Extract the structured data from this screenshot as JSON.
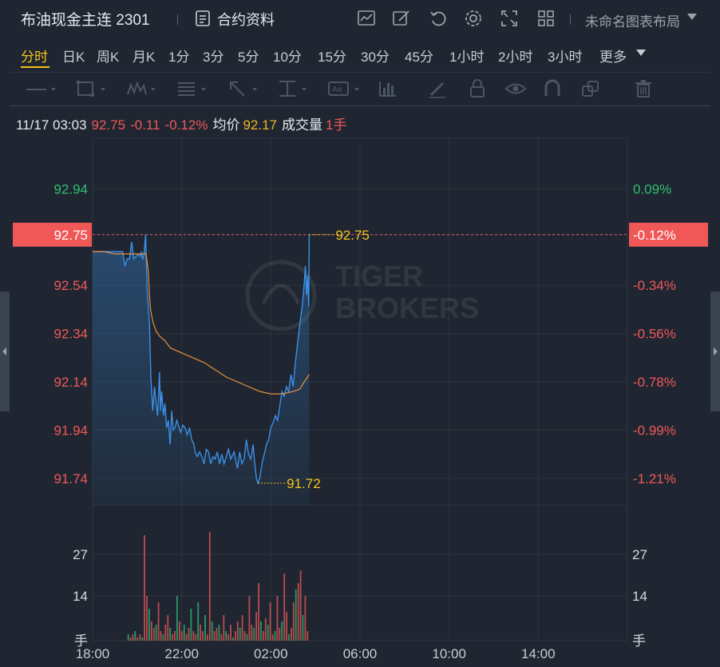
{
  "header": {
    "title": "布油现金主连 2301",
    "contract_info": "合约资料",
    "layout_name": "未命名图表布局",
    "icons": [
      "indicator-icon",
      "draw-icon",
      "refresh-icon",
      "settings-icon",
      "fullscreen-icon",
      "grid-layout-icon"
    ]
  },
  "periods": {
    "tabs": [
      "分时",
      "日K",
      "周K",
      "月K",
      "1分",
      "3分",
      "5分",
      "10分",
      "15分",
      "30分",
      "45分",
      "1小时",
      "2小时",
      "3小时",
      "更多"
    ],
    "active": "分时"
  },
  "tools": [
    "line-tool-icon",
    "rectangle-tool-icon",
    "pattern-tool-icon",
    "fib-tool-icon",
    "arrow-tool-icon",
    "measure-tool-icon",
    "text-tool-icon",
    "bars-tool-icon",
    "pencil-icon",
    "lock-icon",
    "eye-icon",
    "magnet-icon",
    "clone-icon",
    "trash-icon"
  ],
  "quote": {
    "time": "11/17 03:03",
    "price": "92.75",
    "change": "-0.11",
    "change_pct": "-0.12%",
    "avg_label": "均价",
    "avg_price": "92.17",
    "volume_label": "成交量",
    "volume": "1手"
  },
  "colors": {
    "up": "#2fbf71",
    "down": "#f05858",
    "price_line": "#3b8fe6",
    "avg_line": "#e8903a",
    "highlight": "#f5c518"
  },
  "chart_data": {
    "type": "line",
    "price_ticks": [
      "92.94",
      "92.75",
      "92.54",
      "92.34",
      "92.14",
      "91.94",
      "91.74"
    ],
    "pct_ticks": [
      "0.09%",
      "-0.12%",
      "-0.34%",
      "-0.56%",
      "-0.78%",
      "-0.99%",
      "-1.21%"
    ],
    "current_price_label": "92.75",
    "current_pct_label": "-0.12%",
    "high_label": "92.75",
    "low_label": "91.72",
    "volume_ticks": [
      "27",
      "14",
      "手"
    ],
    "x_ticks": [
      "18:00",
      "22:00",
      "02:00",
      "06:00",
      "10:00",
      "14:00"
    ],
    "x_range_hours": [
      0,
      24
    ],
    "price_range": [
      91.63,
      93.15
    ],
    "volume_range": [
      0,
      40
    ],
    "series": [
      {
        "key": "price",
        "points": [
          [
            0,
            92.68
          ],
          [
            0.2,
            92.68
          ],
          [
            0.5,
            92.68
          ],
          [
            0.8,
            92.68
          ],
          [
            1.0,
            92.68
          ],
          [
            1.2,
            92.68
          ],
          [
            1.35,
            92.68
          ],
          [
            1.45,
            92.62
          ],
          [
            1.55,
            92.65
          ],
          [
            1.65,
            92.65
          ],
          [
            1.75,
            92.72
          ],
          [
            1.85,
            92.65
          ],
          [
            1.95,
            92.66
          ],
          [
            2.05,
            92.67
          ],
          [
            2.15,
            92.66
          ],
          [
            2.2,
            92.68
          ],
          [
            2.25,
            92.65
          ],
          [
            2.3,
            92.66
          ],
          [
            2.38,
            92.75
          ],
          [
            2.45,
            92.52
          ],
          [
            2.55,
            92.38
          ],
          [
            2.62,
            92.15
          ],
          [
            2.7,
            92.02
          ],
          [
            2.78,
            92.12
          ],
          [
            2.85,
            92.05
          ],
          [
            2.92,
            92.0
          ],
          [
            3.0,
            92.18
          ],
          [
            3.05,
            92.02
          ],
          [
            3.1,
            92.1
          ],
          [
            3.18,
            92.0
          ],
          [
            3.25,
            92.05
          ],
          [
            3.32,
            91.95
          ],
          [
            3.4,
            91.98
          ],
          [
            3.48,
            91.88
          ],
          [
            3.55,
            92.02
          ],
          [
            3.62,
            91.94
          ],
          [
            3.7,
            91.95
          ],
          [
            3.78,
            91.98
          ],
          [
            3.85,
            91.96
          ],
          [
            3.95,
            91.93
          ],
          [
            4.05,
            91.96
          ],
          [
            4.15,
            91.95
          ],
          [
            4.25,
            91.92
          ],
          [
            4.35,
            91.95
          ],
          [
            4.45,
            91.9
          ],
          [
            4.55,
            91.88
          ],
          [
            4.6,
            91.85
          ],
          [
            4.7,
            91.83
          ],
          [
            4.8,
            91.85
          ],
          [
            4.9,
            91.83
          ],
          [
            5.0,
            91.8
          ],
          [
            5.1,
            91.86
          ],
          [
            5.2,
            91.85
          ],
          [
            5.3,
            91.8
          ],
          [
            5.4,
            91.83
          ],
          [
            5.5,
            91.82
          ],
          [
            5.6,
            91.85
          ],
          [
            5.7,
            91.8
          ],
          [
            5.8,
            91.84
          ],
          [
            5.9,
            91.8
          ],
          [
            6.0,
            91.83
          ],
          [
            6.1,
            91.86
          ],
          [
            6.2,
            91.82
          ],
          [
            6.35,
            91.85
          ],
          [
            6.5,
            91.78
          ],
          [
            6.6,
            91.85
          ],
          [
            6.7,
            91.8
          ],
          [
            6.8,
            91.82
          ],
          [
            6.9,
            91.9
          ],
          [
            7.0,
            91.84
          ],
          [
            7.1,
            91.82
          ],
          [
            7.2,
            91.88
          ],
          [
            7.28,
            91.8
          ],
          [
            7.35,
            91.74
          ],
          [
            7.42,
            91.72
          ],
          [
            7.5,
            91.74
          ],
          [
            7.6,
            91.8
          ],
          [
            7.7,
            91.84
          ],
          [
            7.8,
            91.88
          ],
          [
            7.9,
            91.9
          ],
          [
            8.0,
            91.95
          ],
          [
            8.1,
            91.97
          ],
          [
            8.2,
            92.0
          ],
          [
            8.3,
            91.98
          ],
          [
            8.4,
            92.04
          ],
          [
            8.5,
            92.1
          ],
          [
            8.6,
            92.08
          ],
          [
            8.7,
            92.12
          ],
          [
            8.8,
            92.1
          ],
          [
            8.9,
            92.17
          ],
          [
            9.0,
            92.12
          ],
          [
            9.1,
            92.22
          ],
          [
            9.2,
            92.3
          ],
          [
            9.3,
            92.38
          ],
          [
            9.4,
            92.45
          ],
          [
            9.5,
            92.55
          ],
          [
            9.55,
            92.62
          ],
          [
            9.6,
            92.5
          ],
          [
            9.65,
            92.58
          ],
          [
            9.7,
            92.45
          ],
          [
            9.72,
            92.75
          ]
        ]
      },
      {
        "key": "average",
        "points": [
          [
            0,
            92.68
          ],
          [
            0.5,
            92.68
          ],
          [
            1.0,
            92.67
          ],
          [
            1.5,
            92.67
          ],
          [
            2.0,
            92.67
          ],
          [
            2.4,
            92.67
          ],
          [
            2.5,
            92.6
          ],
          [
            2.55,
            92.5
          ],
          [
            2.6,
            92.44
          ],
          [
            2.7,
            92.39
          ],
          [
            2.85,
            92.35
          ],
          [
            3.0,
            92.33
          ],
          [
            3.25,
            92.31
          ],
          [
            3.5,
            92.28
          ],
          [
            4.0,
            92.26
          ],
          [
            4.5,
            92.24
          ],
          [
            5.0,
            92.22
          ],
          [
            5.5,
            92.19
          ],
          [
            6.0,
            92.16
          ],
          [
            6.5,
            92.14
          ],
          [
            7.0,
            92.12
          ],
          [
            7.5,
            92.1
          ],
          [
            8.0,
            92.09
          ],
          [
            8.5,
            92.09
          ],
          [
            9.0,
            92.1
          ],
          [
            9.3,
            92.11
          ],
          [
            9.5,
            92.14
          ],
          [
            9.72,
            92.17
          ]
        ]
      }
    ],
    "volume": [
      0,
      0,
      0,
      0,
      0,
      0,
      0,
      0,
      0,
      0,
      0,
      0,
      0,
      0,
      0,
      2,
      1,
      2,
      3,
      1,
      2,
      1,
      33,
      14,
      10,
      6,
      4,
      5,
      12,
      3,
      2,
      5,
      8,
      4,
      2,
      3,
      14,
      6,
      3,
      5,
      2,
      4,
      10,
      3,
      2,
      12,
      5,
      3,
      8,
      2,
      34,
      6,
      3,
      4,
      5,
      2,
      8,
      3,
      2,
      5,
      1,
      3,
      6,
      4,
      8,
      3,
      2,
      14,
      5,
      4,
      9,
      18,
      6,
      3,
      7,
      5,
      12,
      2,
      3,
      14,
      4,
      6,
      21,
      9,
      2,
      4,
      12,
      16,
      18,
      22,
      8,
      14,
      3
    ]
  }
}
